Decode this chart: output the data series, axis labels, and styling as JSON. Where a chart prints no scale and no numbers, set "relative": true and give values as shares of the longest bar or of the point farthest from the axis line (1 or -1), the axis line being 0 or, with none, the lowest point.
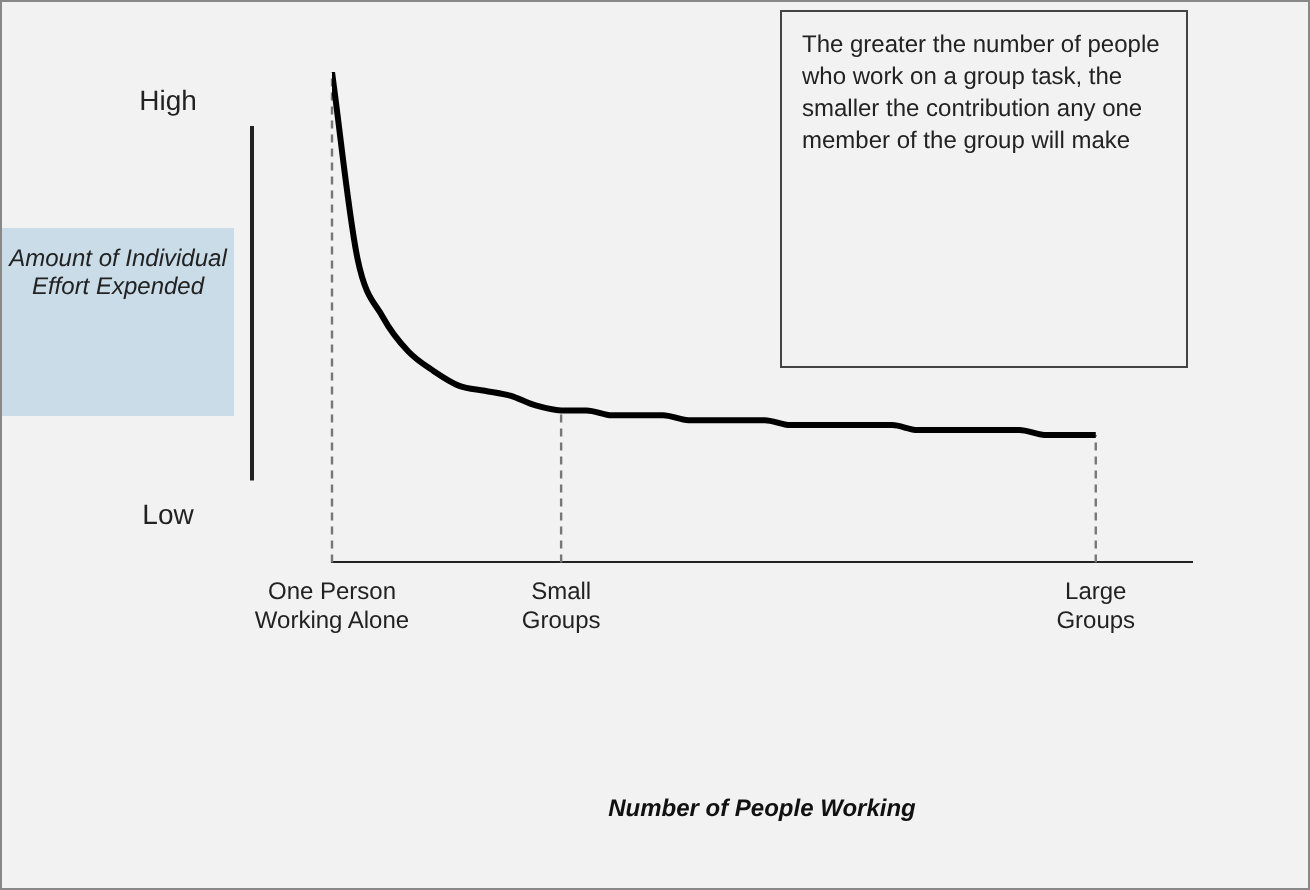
{
  "chart_data": {
    "type": "line",
    "relative": true,
    "ylabel": "Amount of Individual Effort Expended",
    "annotations": [
      "The greater the number of people who work on a group task, the smaller the contribution any one member of the group will make",
      "High",
      "Low",
      "Number of People Working"
    ],
    "categories": [
      "One Person\nWorking Alone",
      null,
      null,
      null,
      null,
      null,
      null,
      null,
      null,
      "Small\nGroups",
      null,
      null,
      null,
      null,
      null,
      null,
      null,
      null,
      null,
      null,
      null,
      null,
      null,
      null,
      null,
      null,
      null,
      null,
      null,
      null,
      "Large\nGroups"
    ],
    "series": [
      {
        "color": "#000000",
        "values": [
          1.0,
          0.62,
          0.5,
          0.43,
          0.39,
          0.36,
          0.35,
          0.34,
          0.32,
          0.31,
          0.31,
          0.3,
          0.3,
          0.3,
          0.29,
          0.29,
          0.29,
          0.29,
          0.28,
          0.28,
          0.28,
          0.28,
          0.28,
          0.27,
          0.27,
          0.27,
          0.27,
          0.27,
          0.26,
          0.26,
          0.26
        ]
      }
    ],
    "ref_lines": [
      {
        "axis": "x",
        "value": "One Person\nWorking Alone",
        "line_style": "dashed",
        "color": "#777777"
      },
      {
        "axis": "x",
        "value": "Small\nGroups",
        "line_style": "dashed",
        "color": "#777777"
      },
      {
        "axis": "x",
        "value": "Large\nGroups",
        "line_style": "dashed",
        "color": "#777777"
      }
    ],
    "grid": false,
    "legend": false,
    "marker": "none",
    "line_style": "solid"
  }
}
